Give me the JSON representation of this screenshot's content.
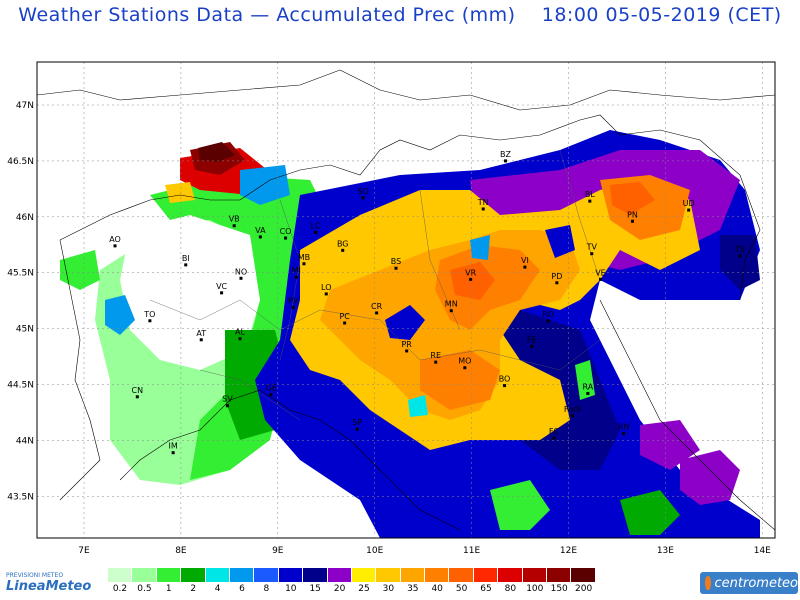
{
  "header": {
    "title": "Weather Stations Data — Accumulated Prec (mm)    18:00 05-05-2019 (CET)"
  },
  "map": {
    "lat_labels": [
      "47N",
      "46.5N",
      "46N",
      "45.5N",
      "45N",
      "44.5N",
      "44N",
      "43.5N"
    ],
    "lon_labels": [
      "7E",
      "8E",
      "9E",
      "10E",
      "11E",
      "12E",
      "13E",
      "14E"
    ],
    "cities": [
      {
        "name": "BZ",
        "lon": 11.35,
        "lat": 46.5
      },
      {
        "name": "SO",
        "lon": 9.88,
        "lat": 46.17
      },
      {
        "name": "VB",
        "lon": 8.55,
        "lat": 45.92
      },
      {
        "name": "VA",
        "lon": 8.82,
        "lat": 45.82
      },
      {
        "name": "CO",
        "lon": 9.08,
        "lat": 45.81
      },
      {
        "name": "LC",
        "lon": 9.39,
        "lat": 45.86
      },
      {
        "name": "BG",
        "lon": 9.67,
        "lat": 45.7
      },
      {
        "name": "BS",
        "lon": 10.22,
        "lat": 45.54
      },
      {
        "name": "TN",
        "lon": 11.12,
        "lat": 46.07
      },
      {
        "name": "BL",
        "lon": 12.22,
        "lat": 46.14
      },
      {
        "name": "PN",
        "lon": 12.66,
        "lat": 45.96
      },
      {
        "name": "UD",
        "lon": 13.24,
        "lat": 46.06
      },
      {
        "name": "TV",
        "lon": 12.24,
        "lat": 45.67
      },
      {
        "name": "TS",
        "lon": 13.77,
        "lat": 45.65
      },
      {
        "name": "VR",
        "lon": 10.99,
        "lat": 45.44
      },
      {
        "name": "VI",
        "lon": 11.55,
        "lat": 45.55
      },
      {
        "name": "PD",
        "lon": 11.88,
        "lat": 45.41
      },
      {
        "name": "VE",
        "lon": 12.33,
        "lat": 45.44
      },
      {
        "name": "RO",
        "lon": 11.79,
        "lat": 45.07
      },
      {
        "name": "MN",
        "lon": 10.79,
        "lat": 45.16
      },
      {
        "name": "CR",
        "lon": 10.02,
        "lat": 45.14
      },
      {
        "name": "LO",
        "lon": 9.5,
        "lat": 45.31
      },
      {
        "name": "MB",
        "lon": 9.27,
        "lat": 45.58
      },
      {
        "name": "MI",
        "lon": 9.19,
        "lat": 45.46
      },
      {
        "name": "NO",
        "lon": 8.62,
        "lat": 45.45
      },
      {
        "name": "BI",
        "lon": 8.05,
        "lat": 45.57
      },
      {
        "name": "VC",
        "lon": 8.42,
        "lat": 45.32
      },
      {
        "name": "AO",
        "lon": 7.32,
        "lat": 45.74
      },
      {
        "name": "TO",
        "lon": 7.68,
        "lat": 45.07
      },
      {
        "name": "AT",
        "lon": 8.21,
        "lat": 44.9
      },
      {
        "name": "AL",
        "lon": 8.61,
        "lat": 44.91
      },
      {
        "name": "PV",
        "lon": 9.16,
        "lat": 45.19
      },
      {
        "name": "PC",
        "lon": 9.69,
        "lat": 45.05
      },
      {
        "name": "PR",
        "lon": 10.33,
        "lat": 44.8
      },
      {
        "name": "RE",
        "lon": 10.63,
        "lat": 44.7
      },
      {
        "name": "MO",
        "lon": 10.93,
        "lat": 44.65
      },
      {
        "name": "BO",
        "lon": 11.34,
        "lat": 44.49
      },
      {
        "name": "FE",
        "lon": 11.62,
        "lat": 44.84
      },
      {
        "name": "RA",
        "lon": 12.2,
        "lat": 44.42
      },
      {
        "name": "Forli",
        "lon": 12.04,
        "lat": 44.22
      },
      {
        "name": "FC",
        "lon": 11.85,
        "lat": 44.02
      },
      {
        "name": "RN",
        "lon": 12.57,
        "lat": 44.06
      },
      {
        "name": "CN",
        "lon": 7.55,
        "lat": 44.39
      },
      {
        "name": "IM",
        "lon": 7.92,
        "lat": 43.89
      },
      {
        "name": "SV",
        "lon": 8.48,
        "lat": 44.31
      },
      {
        "name": "GE",
        "lon": 8.93,
        "lat": 44.41
      },
      {
        "name": "SP",
        "lon": 9.82,
        "lat": 44.1
      }
    ]
  },
  "legend": {
    "labels": [
      "0.2",
      "0.5",
      "1",
      "2",
      "4",
      "6",
      "8",
      "10",
      "15",
      "20",
      "25",
      "30",
      "35",
      "40",
      "50",
      "65",
      "80",
      "100",
      "150",
      "200"
    ],
    "colors": [
      "#ccffcc",
      "#99ff99",
      "#33ee33",
      "#00aa00",
      "#00e6e6",
      "#0099ee",
      "#1a5aff",
      "#0000cc",
      "#00008b",
      "#8c00c8",
      "#ffee00",
      "#ffc800",
      "#ffa500",
      "#ff8000",
      "#ff6000",
      "#ff2800",
      "#dc0000",
      "#b40000",
      "#8c0000",
      "#5a0000"
    ]
  },
  "logos": {
    "left_top": "PREVISIONI METEO",
    "left_main": "LineaMeteo",
    "right": "centrometeo"
  }
}
